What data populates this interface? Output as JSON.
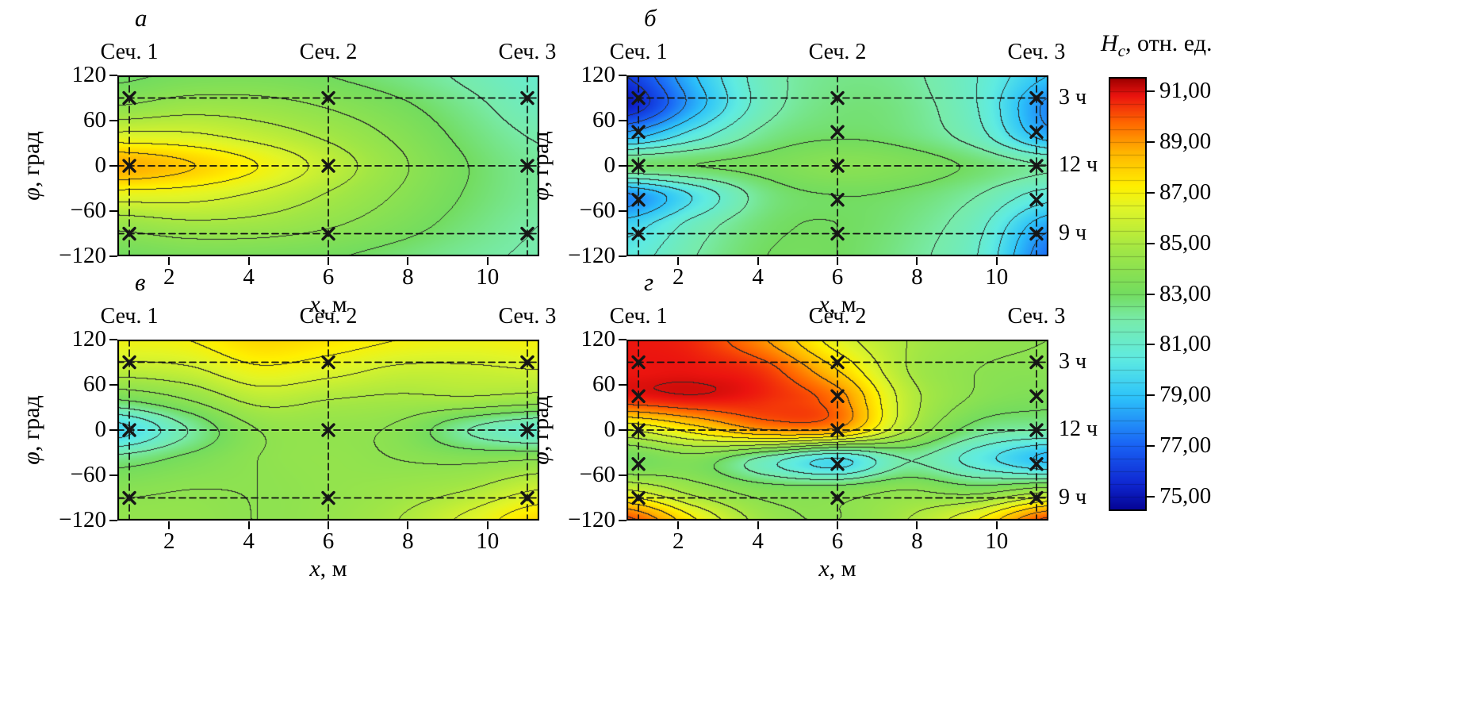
{
  "figure": {
    "type": "scientific-contour-figure",
    "background": "#ffffff",
    "panel_letters": [
      "а",
      "б",
      "в",
      "г"
    ]
  },
  "axes": {
    "xlim": [
      0.7,
      11.3
    ],
    "ylim": [
      -120,
      120
    ],
    "x_tick_values": [
      2,
      4,
      6,
      8,
      10
    ],
    "x_tick_labels": [
      "2",
      "4",
      "6",
      "8",
      "10"
    ],
    "y_tick_values": [
      120,
      60,
      0,
      -60,
      -120
    ],
    "y_tick_labels": [
      "120",
      "60",
      "0",
      "−60",
      "−120"
    ],
    "xlabel_var": "x",
    "xlabel_rest": ", м",
    "ylabel_var": "φ",
    "ylabel_rest": ", град",
    "sections": [
      {
        "label": "Сеч. 1",
        "x": 1
      },
      {
        "label": "Сеч. 2",
        "x": 6
      },
      {
        "label": "Сеч. 3",
        "x": 11
      }
    ],
    "dashed_phi": [
      90,
      0,
      -90
    ]
  },
  "colorbar": {
    "title_var": "H",
    "title_sub": "c",
    "title_rest": ", отн. ед.",
    "vmin": 74.5,
    "vmax": 91.5,
    "tick_values": [
      91,
      89,
      87,
      85,
      83,
      81,
      79,
      77,
      75
    ],
    "tick_labels": [
      "91,00",
      "89,00",
      "87,00",
      "85,00",
      "83,00",
      "81,00",
      "79,00",
      "77,00",
      "75,00"
    ],
    "stripe_interval": 0.5
  },
  "colormap_stops": [
    [
      0.0,
      [
        5,
        5,
        150
      ]
    ],
    [
      0.06,
      [
        15,
        40,
        210
      ]
    ],
    [
      0.15,
      [
        25,
        100,
        245
      ]
    ],
    [
      0.26,
      [
        45,
        195,
        250
      ]
    ],
    [
      0.35,
      [
        95,
        235,
        225
      ]
    ],
    [
      0.44,
      [
        120,
        235,
        170
      ]
    ],
    [
      0.5,
      [
        115,
        220,
        95
      ]
    ],
    [
      0.6,
      [
        160,
        230,
        70
      ]
    ],
    [
      0.7,
      [
        225,
        245,
        40
      ]
    ],
    [
      0.75,
      [
        255,
        240,
        0
      ]
    ],
    [
      0.83,
      [
        255,
        180,
        0
      ]
    ],
    [
      0.9,
      [
        255,
        100,
        0
      ]
    ],
    [
      0.96,
      [
        235,
        20,
        15
      ]
    ],
    [
      1.0,
      [
        160,
        0,
        0
      ]
    ]
  ],
  "chart_data": [
    {
      "type": "heatmap",
      "panel_label": "а",
      "quantity": "Hc, отн. ед.",
      "marker_phi": [
        90,
        0,
        -90
      ],
      "right_labels": [],
      "grid_x": [
        0.7,
        2.47,
        4.23,
        6.0,
        7.77,
        9.53,
        11.3
      ],
      "grid_phi": [
        120,
        80,
        40,
        0,
        -40,
        -80,
        -120
      ],
      "values": [
        [
          82.8,
          83.2,
          83.3,
          83.0,
          82.5,
          81.8,
          81.0
        ],
        [
          84.0,
          84.5,
          84.4,
          83.9,
          83.2,
          82.3,
          81.4
        ],
        [
          86.3,
          86.2,
          85.6,
          84.8,
          83.8,
          82.7,
          81.9
        ],
        [
          88.8,
          88.1,
          87.0,
          85.6,
          84.2,
          83.0,
          82.2
        ],
        [
          86.5,
          86.4,
          85.8,
          84.9,
          83.9,
          82.9,
          82.2
        ],
        [
          84.3,
          84.7,
          84.6,
          84.1,
          83.4,
          82.6,
          82.0
        ],
        [
          83.0,
          83.3,
          83.3,
          83.1,
          82.7,
          82.2,
          81.9
        ]
      ]
    },
    {
      "type": "heatmap",
      "panel_label": "б",
      "quantity": "Hc, отн. ед.",
      "marker_phi": [
        90,
        45,
        0,
        -45,
        -90
      ],
      "right_labels": [
        {
          "label": "3 ч",
          "phi": 90
        },
        {
          "label": "12 ч",
          "phi": 0
        },
        {
          "label": "9 ч",
          "phi": -90
        }
      ],
      "grid_x": [
        0.7,
        2.47,
        4.23,
        6.0,
        7.77,
        9.53,
        11.3
      ],
      "grid_phi": [
        120,
        80,
        40,
        0,
        -40,
        -80,
        -120
      ],
      "values": [
        [
          76.0,
          79.0,
          81.6,
          82.4,
          82.2,
          81.0,
          79.0
        ],
        [
          75.2,
          78.6,
          81.6,
          82.6,
          82.4,
          81.0,
          77.8
        ],
        [
          78.5,
          80.6,
          82.4,
          82.9,
          82.6,
          81.4,
          78.5
        ],
        [
          82.8,
          83.0,
          83.3,
          83.8,
          83.5,
          82.8,
          82.0
        ],
        [
          77.8,
          80.2,
          82.5,
          83.0,
          82.8,
          82.0,
          80.5
        ],
        [
          79.5,
          81.5,
          82.8,
          83.0,
          82.5,
          81.3,
          78.3
        ],
        [
          80.5,
          82.0,
          83.0,
          83.0,
          82.3,
          81.0,
          77.3
        ]
      ]
    },
    {
      "type": "heatmap",
      "panel_label": "в",
      "quantity": "Hc, отн. ед.",
      "marker_phi": [
        90,
        0,
        -90
      ],
      "right_labels": [],
      "grid_x": [
        0.7,
        2.47,
        4.23,
        6.0,
        7.77,
        9.53,
        11.3
      ],
      "grid_phi": [
        120,
        80,
        40,
        0,
        -40,
        -80,
        -120
      ],
      "values": [
        [
          86.8,
          87.0,
          87.8,
          87.5,
          87.0,
          86.8,
          87.0
        ],
        [
          85.5,
          85.8,
          86.8,
          86.4,
          85.8,
          85.8,
          86.0
        ],
        [
          83.0,
          84.0,
          85.3,
          85.0,
          84.8,
          84.8,
          84.5
        ],
        [
          79.6,
          82.0,
          84.0,
          84.2,
          83.8,
          82.0,
          81.0
        ],
        [
          82.5,
          83.3,
          84.0,
          84.2,
          84.0,
          83.8,
          84.0
        ],
        [
          83.8,
          84.0,
          84.0,
          84.2,
          84.5,
          85.0,
          86.0
        ],
        [
          84.2,
          84.2,
          84.0,
          84.3,
          85.0,
          86.3,
          87.8
        ]
      ]
    },
    {
      "type": "heatmap",
      "panel_label": "г",
      "quantity": "Hc, отн. ед.",
      "marker_phi": [
        90,
        45,
        0,
        -45,
        -90
      ],
      "right_labels": [
        {
          "label": "3 ч",
          "phi": 90
        },
        {
          "label": "12 ч",
          "phi": 0
        },
        {
          "label": "9 ч",
          "phi": -90
        }
      ],
      "grid_x": [
        0.7,
        2.47,
        4.23,
        6.0,
        7.77,
        9.53,
        11.3
      ],
      "grid_phi": [
        120,
        80,
        40,
        0,
        -40,
        -80,
        -120
      ],
      "values": [
        [
          90.8,
          90.5,
          89.0,
          86.5,
          85.0,
          84.3,
          84.0
        ],
        [
          90.8,
          90.8,
          90.3,
          88.0,
          85.0,
          84.0,
          83.8
        ],
        [
          90.5,
          90.8,
          90.5,
          89.5,
          85.5,
          83.8,
          83.3
        ],
        [
          86.0,
          87.5,
          89.0,
          88.7,
          85.0,
          82.5,
          82.0
        ],
        [
          83.0,
          83.5,
          81.5,
          79.8,
          82.0,
          80.5,
          78.8
        ],
        [
          86.0,
          84.5,
          83.5,
          83.5,
          84.0,
          83.5,
          84.5
        ],
        [
          90.3,
          87.0,
          84.5,
          84.0,
          85.0,
          87.0,
          90.3
        ]
      ]
    }
  ]
}
